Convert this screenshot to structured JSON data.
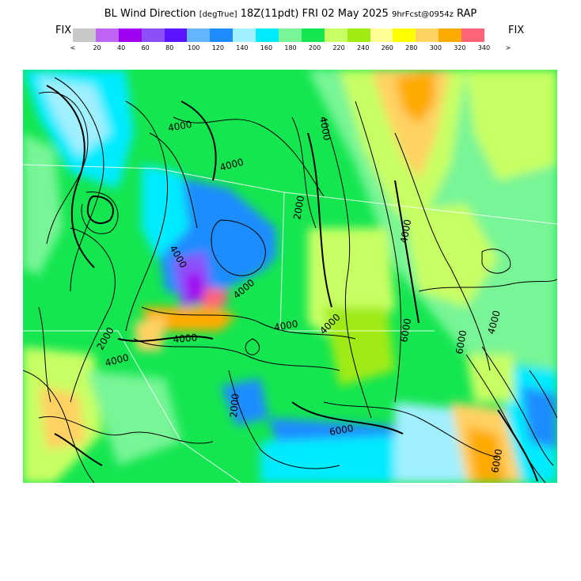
{
  "title": {
    "field": "BL Wind Direction",
    "units": "[degTrue]",
    "valid": "18Z(11pdt) FRI 02 May 2025",
    "forecast": "9hrFcst@0954z",
    "model": "RAP"
  },
  "legend": {
    "fix_left": "FIX",
    "fix_right": "FIX",
    "under_label": "<",
    "over_label": ">",
    "colors": [
      "#c8c8c8",
      "#be64f5",
      "#a000f0",
      "#8c50fa",
      "#5a14ff",
      "#64b4ff",
      "#1e8cff",
      "#a0f0ff",
      "#00ebff",
      "#78f596",
      "#14e650",
      "#c8ff64",
      "#a0eb14",
      "#ffff96",
      "#ffff00",
      "#ffd264",
      "#ffaa00",
      "#ff6478"
    ],
    "tick_labels": [
      "20",
      "40",
      "60",
      "80",
      "100",
      "120",
      "140",
      "160",
      "180",
      "200",
      "220",
      "240",
      "260",
      "280",
      "300",
      "320",
      "340"
    ]
  },
  "map": {
    "contour_labels": [
      "4000",
      "4000",
      "4000",
      "2000",
      "4000",
      "4000",
      "4000",
      "2000",
      "4000",
      "4000",
      "4000",
      "4000",
      "6000",
      "2000",
      "6000",
      "6000",
      "6000",
      "4000"
    ]
  }
}
